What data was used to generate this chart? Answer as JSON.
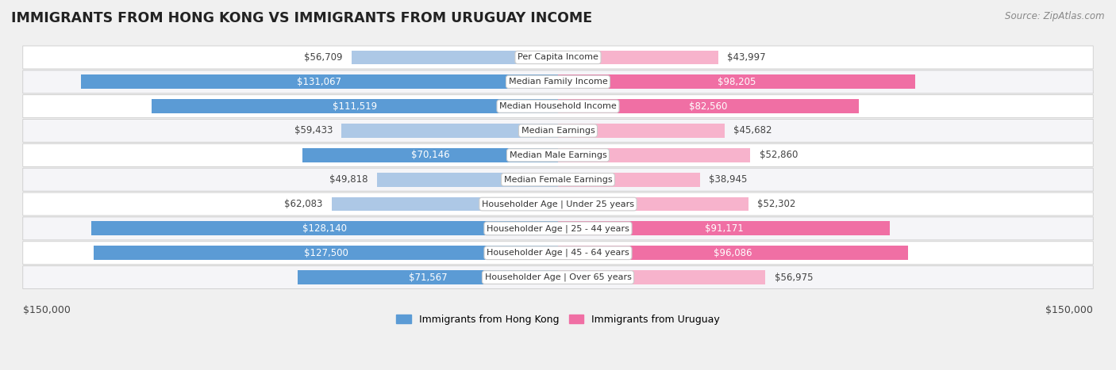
{
  "title": "IMMIGRANTS FROM HONG KONG VS IMMIGRANTS FROM URUGUAY INCOME",
  "source": "Source: ZipAtlas.com",
  "categories": [
    "Per Capita Income",
    "Median Family Income",
    "Median Household Income",
    "Median Earnings",
    "Median Male Earnings",
    "Median Female Earnings",
    "Householder Age | Under 25 years",
    "Householder Age | 25 - 44 years",
    "Householder Age | 45 - 64 years",
    "Householder Age | Over 65 years"
  ],
  "hong_kong_values": [
    56709,
    131067,
    111519,
    59433,
    70146,
    49818,
    62083,
    128140,
    127500,
    71567
  ],
  "uruguay_values": [
    43997,
    98205,
    82560,
    45682,
    52860,
    38945,
    52302,
    91171,
    96086,
    56975
  ],
  "hong_kong_labels": [
    "$56,709",
    "$131,067",
    "$111,519",
    "$59,433",
    "$70,146",
    "$49,818",
    "$62,083",
    "$128,140",
    "$127,500",
    "$71,567"
  ],
  "uruguay_labels": [
    "$43,997",
    "$98,205",
    "$82,560",
    "$45,682",
    "$52,860",
    "$38,945",
    "$52,302",
    "$91,171",
    "$96,086",
    "$56,975"
  ],
  "max_value": 150000,
  "hk_bar_color_light": "#adc8e6",
  "hk_bar_color_dark": "#5b9bd5",
  "uy_bar_color_light": "#f7b3cc",
  "uy_bar_color_dark": "#f06fa4",
  "bg_color": "#f0f0f0",
  "row_bg_even": "#ffffff",
  "row_bg_odd": "#f5f5f8",
  "label_inside_color": "#ffffff",
  "label_outside_color": "#444444",
  "legend_hk": "Immigrants from Hong Kong",
  "legend_uy": "Immigrants from Uruguay",
  "axis_label_left": "$150,000",
  "axis_label_right": "$150,000",
  "inside_threshold": 0.42
}
